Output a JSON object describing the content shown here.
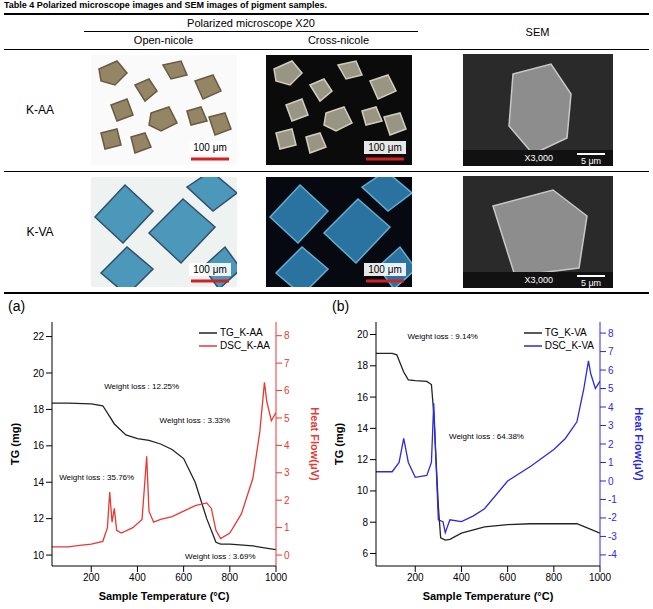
{
  "table": {
    "caption": "Table 4 Polarized microscope images and SEM images of pigment samples.",
    "header": {
      "group": "Polarized microscope X20",
      "columns": [
        "Open-nicole",
        "Cross-nicole"
      ],
      "last": "SEM"
    },
    "rows": [
      {
        "label": "K-AA",
        "scale_bars": [
          "100 μm",
          "100 μm"
        ],
        "sem_scale": "5 μm",
        "sem_magnification": "X3,000"
      },
      {
        "label": "K-VA",
        "scale_bars": [
          "100 μm",
          "100 μm"
        ],
        "sem_scale": "5 μm",
        "sem_magnification": "X3,000"
      }
    ]
  },
  "chart_data": [
    {
      "type": "line",
      "panel": "(a)",
      "x_label": "Sample Temperature (°C)",
      "y_label": "TG (mg)",
      "y2_label": "Heat Flow(μV)",
      "xlim": [
        30,
        1000
      ],
      "xticks": [
        200,
        400,
        600,
        800,
        1000
      ],
      "ylim": [
        9.4,
        22.8
      ],
      "yticks": [
        10,
        12,
        14,
        16,
        18,
        20,
        22
      ],
      "y2lim": [
        -0.4,
        8.5
      ],
      "y2ticks": [
        0,
        1,
        2,
        3,
        4,
        5,
        6,
        7,
        8
      ],
      "legend": "top-right",
      "series": [
        {
          "name": "TG_K-AA",
          "color": "#222222",
          "x": [
            30,
            100,
            200,
            250,
            280,
            300,
            350,
            400,
            450,
            500,
            550,
            600,
            650,
            700,
            740,
            760,
            800,
            900,
            950,
            1000
          ],
          "values": [
            18.35,
            18.35,
            18.3,
            18.2,
            17.6,
            17.2,
            16.6,
            16.4,
            16.3,
            16.1,
            15.8,
            15.3,
            14.0,
            12.0,
            10.7,
            10.6,
            10.6,
            10.5,
            10.4,
            10.3
          ]
        },
        {
          "name": "DSC_K-AA",
          "color": "#e53935",
          "axis": "y2",
          "x": [
            30,
            100,
            150,
            200,
            250,
            270,
            280,
            290,
            300,
            310,
            330,
            380,
            420,
            440,
            450,
            470,
            500,
            550,
            600,
            650,
            700,
            720,
            740,
            760,
            800,
            850,
            900,
            930,
            950,
            960,
            980,
            1000
          ],
          "values": [
            0.3,
            0.3,
            0.35,
            0.4,
            0.5,
            1.0,
            2.3,
            1.2,
            1.7,
            0.9,
            0.8,
            1.0,
            1.3,
            3.6,
            1.6,
            1.2,
            1.3,
            1.4,
            1.6,
            1.8,
            1.9,
            1.7,
            0.9,
            0.6,
            0.8,
            1.5,
            2.8,
            4.5,
            6.3,
            5.6,
            4.9,
            5.2
          ]
        }
      ],
      "annotations": [
        {
          "text": "Weight loss : 12.25%",
          "x": 230,
          "y": 19.3
        },
        {
          "text": "Weight loss : 3.33%",
          "x": 470,
          "y": 17.4
        },
        {
          "text": "Weight loss : 35.76%",
          "x": 35,
          "y": 14.3
        },
        {
          "text": "Weight loss : 3.69%",
          "x": 580,
          "y": 9.95
        }
      ]
    },
    {
      "type": "line",
      "panel": "(b)",
      "x_label": "Sample Temperature (°C)",
      "y_label": "TG (mg)",
      "y2_label": "Heat Flow(μV)",
      "xlim": [
        30,
        1000
      ],
      "xticks": [
        200,
        400,
        600,
        800,
        1000
      ],
      "ylim": [
        5.2,
        20.8
      ],
      "yticks": [
        6,
        8,
        10,
        12,
        14,
        16,
        18,
        20
      ],
      "y2lim": [
        -4.6,
        8.6
      ],
      "y2ticks": [
        -4,
        -3,
        -2,
        -1,
        0,
        1,
        2,
        3,
        4,
        5,
        6,
        7,
        8
      ],
      "legend": "top-right",
      "series": [
        {
          "name": "TG_K-VA",
          "color": "#222222",
          "x": [
            30,
            100,
            120,
            150,
            170,
            200,
            250,
            270,
            280,
            290,
            300,
            310,
            330,
            350,
            400,
            500,
            600,
            700,
            800,
            900,
            950,
            1000
          ],
          "values": [
            18.8,
            18.8,
            18.7,
            17.6,
            17.1,
            17.05,
            17.0,
            16.8,
            15.0,
            12.0,
            9.0,
            7.0,
            6.85,
            6.9,
            7.3,
            7.7,
            7.85,
            7.9,
            7.9,
            7.9,
            7.6,
            7.3
          ]
        },
        {
          "name": "DSC_K-VA",
          "color": "#2b2bd9",
          "axis": "y2",
          "x": [
            30,
            100,
            130,
            150,
            170,
            200,
            250,
            270,
            280,
            290,
            300,
            320,
            330,
            350,
            400,
            450,
            500,
            600,
            700,
            800,
            850,
            900,
            930,
            950,
            960,
            980,
            1000
          ],
          "values": [
            0.5,
            0.5,
            1.0,
            2.3,
            1.0,
            0.2,
            0.3,
            1.0,
            4.2,
            1.0,
            -2.1,
            -2.2,
            -2.8,
            -2.1,
            -2.2,
            -1.9,
            -1.5,
            0.0,
            0.8,
            1.7,
            2.3,
            3.2,
            5.0,
            6.5,
            5.8,
            5.0,
            5.4
          ]
        }
      ],
      "annotations": [
        {
          "text": "Weight loss : 9.14%",
          "x": 140,
          "y": 19.9
        },
        {
          "text": "Weight loss : 64.38%",
          "x": 320,
          "y": 13.5
        }
      ]
    }
  ]
}
